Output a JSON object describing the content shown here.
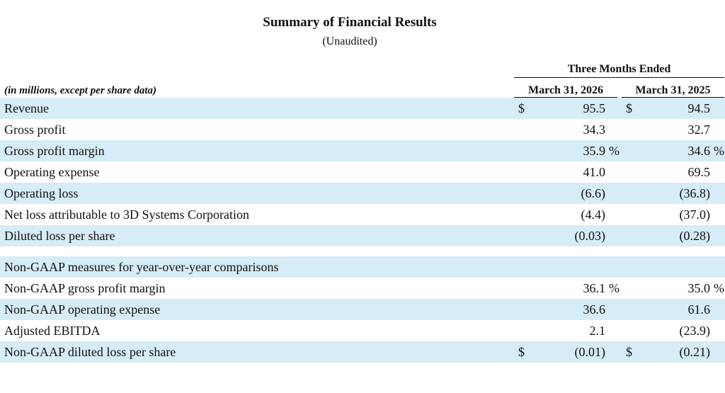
{
  "header": {
    "title": "Summary of Financial Results",
    "subtitle": "(Unaudited)",
    "period_label": "Three Months Ended",
    "units_note": "(in millions, except per share data)",
    "columns": [
      "March 31, 2026",
      "March 31, 2025"
    ]
  },
  "rows": [
    {
      "label": "Revenue",
      "currency": "$",
      "v1": "95.5",
      "v2": "94.5",
      "pct": ""
    },
    {
      "label": "Gross profit",
      "currency": "",
      "v1": "34.3",
      "v2": "32.7",
      "pct": ""
    },
    {
      "label": "Gross profit margin",
      "currency": "",
      "v1": "35.9",
      "v2": "34.6",
      "pct": "%"
    },
    {
      "label": "Operating expense",
      "currency": "",
      "v1": "41.0",
      "v2": "69.5",
      "pct": ""
    },
    {
      "label": "Operating loss",
      "currency": "",
      "v1": "(6.6)",
      "v2": "(36.8)",
      "pct": ""
    },
    {
      "label": "Net loss attributable to 3D Systems Corporation",
      "currency": "",
      "v1": "(4.4)",
      "v2": "(37.0)",
      "pct": ""
    },
    {
      "label": "Diluted loss per share",
      "currency": "",
      "v1": "(0.03)",
      "v2": "(0.28)",
      "pct": ""
    },
    {
      "label": "Non-GAAP measures for year-over-year comparisons",
      "currency": "",
      "v1": "",
      "v2": "",
      "pct": ""
    },
    {
      "label": "Non-GAAP gross profit margin",
      "currency": "",
      "v1": "36.1",
      "v2": "35.0",
      "pct": "%"
    },
    {
      "label": "Non-GAAP operating expense",
      "currency": "",
      "v1": "36.6",
      "v2": "61.6",
      "pct": ""
    },
    {
      "label": "Adjusted EBITDA",
      "currency": "",
      "v1": "2.1",
      "v2": "(23.9)",
      "pct": ""
    },
    {
      "label": "Non-GAAP diluted loss per share",
      "currency": "$",
      "v1": "(0.01)",
      "v2": "(0.21)",
      "pct": ""
    }
  ]
}
